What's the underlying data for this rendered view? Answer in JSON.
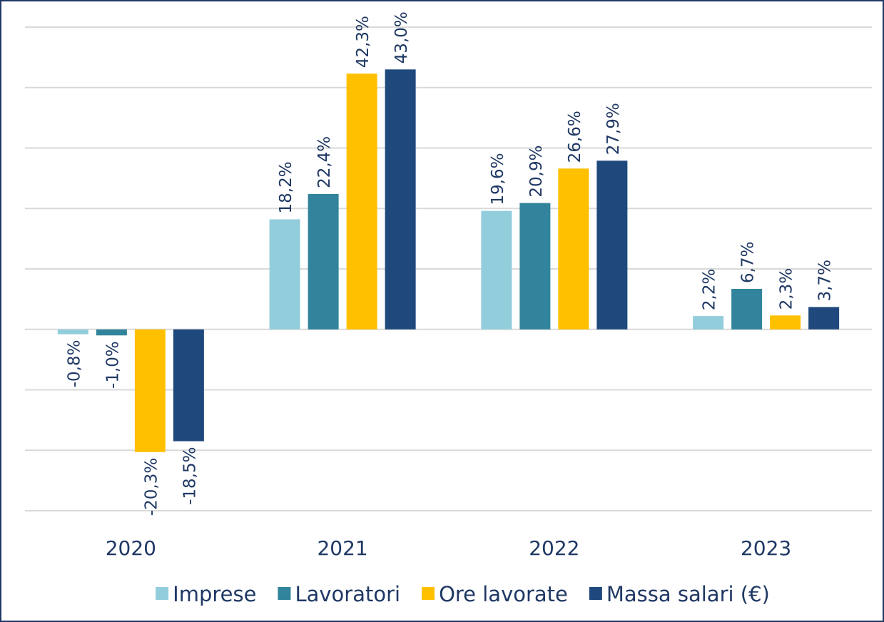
{
  "chart_data": {
    "type": "bar",
    "categories": [
      "2020",
      "2021",
      "2022",
      "2023"
    ],
    "series": [
      {
        "name": "Imprese",
        "color": "#92cddc",
        "values": [
          -0.8,
          18.2,
          19.6,
          2.2
        ],
        "value_labels": [
          "-0,8%",
          "18,2%",
          "19,6%",
          "2,2%"
        ]
      },
      {
        "name": "Lavoratori",
        "color": "#31849b",
        "values": [
          -1.0,
          22.4,
          20.9,
          6.7
        ],
        "value_labels": [
          "-1,0%",
          "22,4%",
          "20,9%",
          "6,7%"
        ]
      },
      {
        "name": "Ore lavorate",
        "color": "#ffc000",
        "values": [
          -20.3,
          42.3,
          26.6,
          2.3
        ],
        "value_labels": [
          "-20,3%",
          "42,3%",
          "26,6%",
          "2,3%"
        ]
      },
      {
        "name": "Massa salari (€)",
        "color": "#1f497d",
        "values": [
          -18.5,
          43.0,
          27.9,
          3.7
        ],
        "value_labels": [
          "-18,5%",
          "43,0%",
          "27,9%",
          "3,7%"
        ]
      }
    ],
    "ylim": [
      -30,
      50
    ],
    "yticks": [
      -30,
      -20,
      -10,
      0,
      10,
      20,
      30,
      40,
      50
    ],
    "grid": true,
    "legend": "bottom"
  }
}
